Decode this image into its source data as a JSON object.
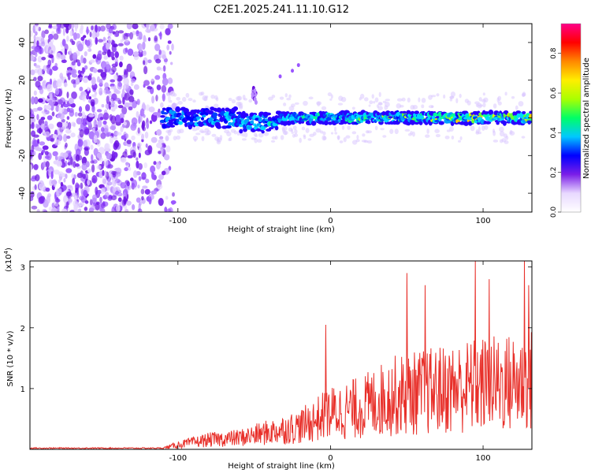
{
  "title": "C2E1.2025.241.11.10.G12",
  "colorbar": {
    "label": "Normalized spectral amplitude",
    "ticks": [
      "0.0",
      "0.2",
      "0.4",
      "0.6",
      "0.8"
    ],
    "tick_values": [
      0.0,
      0.2,
      0.4,
      0.6,
      0.8
    ],
    "range": [
      0.0,
      0.95
    ],
    "stops": [
      "#ffffff",
      "#e8d8ff",
      "#7a1ee8",
      "#0000ff",
      "#00c8ff",
      "#00ff66",
      "#aaff00",
      "#ffee00",
      "#ff8800",
      "#ff0000",
      "#ff0088"
    ]
  },
  "chart_data": [
    {
      "type": "heatmap",
      "title": "C2E1.2025.241.11.10.G12",
      "xlabel": "Height of straight line (km)",
      "ylabel": "Frequency (Hz)",
      "xlim": [
        -197,
        132
      ],
      "ylim": [
        -50,
        50
      ],
      "xticks": [
        -100,
        0,
        100
      ],
      "xtick_labels": [
        "-100",
        "0",
        "100"
      ],
      "yticks": [
        -40,
        -20,
        0,
        20,
        40
      ],
      "ytick_labels": [
        "-40",
        "-20",
        "0",
        "20",
        "40"
      ],
      "description_values": {
        "signal_band_center_hz": 0,
        "noise_region_km": [
          -197,
          -110
        ],
        "band_onset_km": -110
      }
    },
    {
      "type": "line",
      "xlabel": "Height of straight line (km)",
      "ylabel": "SNR (10 * v/v)",
      "y_multiplier_label": "(x10",
      "y_multiplier_exp": "4",
      "y_multiplier_close": ")",
      "xlim": [
        -197,
        132
      ],
      "ylim": [
        0,
        3.1
      ],
      "xticks": [
        -100,
        0,
        100
      ],
      "xtick_labels": [
        "-100",
        "0",
        "100"
      ],
      "yticks": [
        1,
        2,
        3
      ],
      "ytick_labels": [
        "1",
        "2",
        "3"
      ],
      "series": [
        {
          "name": "SNR",
          "color": "#e8302a",
          "envelope_points": {
            "x": [
              -197,
              -110,
              -100,
              -80,
              -60,
              -40,
              -20,
              0,
              20,
              40,
              60,
              80,
              100,
              120,
              132
            ],
            "y": [
              0.02,
              0.03,
              0.12,
              0.25,
              0.3,
              0.45,
              0.6,
              0.95,
              1.1,
              1.4,
              1.5,
              1.6,
              1.7,
              1.75,
              1.8
            ]
          },
          "peaks": [
            {
              "x": -3,
              "y": 2.05
            },
            {
              "x": 50,
              "y": 2.9
            },
            {
              "x": 62,
              "y": 2.7
            },
            {
              "x": 95,
              "y": 3.1
            },
            {
              "x": 104,
              "y": 2.8
            },
            {
              "x": 127,
              "y": 3.1
            },
            {
              "x": 130,
              "y": 2.7
            }
          ]
        }
      ]
    }
  ]
}
